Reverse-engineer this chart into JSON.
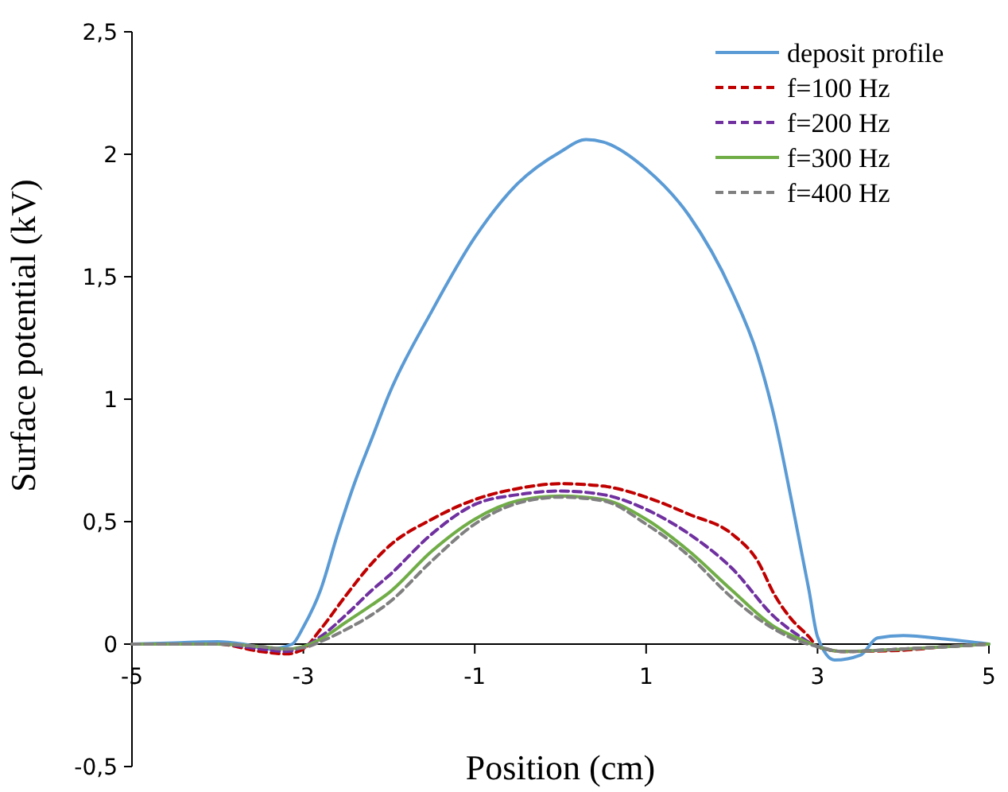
{
  "chart_data": {
    "type": "line",
    "xlabel": "Position (cm)",
    "ylabel": "Surface potential (kV)",
    "xlim": [
      -5,
      5
    ],
    "xticks": [
      -5,
      -3,
      -1,
      1,
      3,
      5
    ],
    "ylim": [
      -0.5,
      2.5
    ],
    "yticks": [
      {
        "value": -0.5,
        "label": "-0,5"
      },
      0,
      {
        "value": 0.5,
        "label": "0,5"
      },
      1,
      {
        "value": 1.5,
        "label": "1,5"
      },
      2,
      {
        "value": 2.5,
        "label": "2,5"
      }
    ],
    "grid": false,
    "legend": "top right",
    "marker": "none",
    "series": [
      {
        "name": "deposit profile",
        "color": "#5b9bd5",
        "line_style": "solid",
        "x": [
          -5,
          -4.5,
          -4,
          -3.7,
          -3.4,
          -3.13,
          -3,
          -2.8,
          -2.6,
          -2.4,
          -2.2,
          -2,
          -1.5,
          -1,
          -0.5,
          0,
          0.3,
          0.5,
          1,
          1.5,
          2,
          2.3,
          2.5,
          2.7,
          2.9,
          3,
          3.2,
          3.5,
          3.7,
          4,
          4.5,
          5
        ],
        "values": [
          0,
          0.005,
          0.01,
          0,
          -0.02,
          0,
          0.07,
          0.22,
          0.45,
          0.66,
          0.84,
          1.02,
          1.36,
          1.66,
          1.88,
          2.01,
          2.06,
          2.05,
          1.94,
          1.75,
          1.44,
          1.18,
          0.92,
          0.58,
          0.22,
          0.03,
          -0.065,
          -0.045,
          0.025,
          0.035,
          0.02,
          0
        ]
      },
      {
        "name": "f=100 Hz",
        "color": "#c00000",
        "line_style": "dashed",
        "x": [
          -5,
          -4,
          -3.5,
          -3.2,
          -3,
          -2.8,
          -2.5,
          -2.2,
          -2,
          -1.5,
          -1,
          -0.5,
          0,
          0.5,
          1,
          1.5,
          2,
          2.3,
          2.5,
          2.7,
          2.9,
          3,
          3.3,
          4,
          4.5,
          5
        ],
        "values": [
          0,
          0,
          -0.03,
          -0.04,
          -0.02,
          0.06,
          0.2,
          0.33,
          0.4,
          0.51,
          0.59,
          0.635,
          0.655,
          0.645,
          0.6,
          0.53,
          0.45,
          0.34,
          0.2,
          0.1,
          0.03,
          -0.01,
          -0.03,
          -0.025,
          -0.01,
          0
        ]
      },
      {
        "name": "f=200 Hz",
        "color": "#7030a0",
        "line_style": "dashed",
        "x": [
          -5,
          -4,
          -3.5,
          -3.2,
          -3,
          -2.8,
          -2.5,
          -2.2,
          -2,
          -1.5,
          -1,
          -0.5,
          0,
          0.5,
          1,
          1.5,
          2,
          2.5,
          2.8,
          3,
          3.3,
          4,
          5
        ],
        "values": [
          0,
          0,
          -0.02,
          -0.03,
          -0.01,
          0.03,
          0.12,
          0.22,
          0.28,
          0.45,
          0.57,
          0.61,
          0.625,
          0.61,
          0.55,
          0.45,
          0.31,
          0.11,
          0.03,
          -0.01,
          -0.03,
          -0.02,
          0
        ]
      },
      {
        "name": "f=300 Hz",
        "color": "#70ad47",
        "line_style": "solid",
        "x": [
          -5,
          -4,
          -3.5,
          -3.2,
          -3,
          -2.8,
          -2.5,
          -2.2,
          -2,
          -1.5,
          -1,
          -0.5,
          0,
          0.5,
          1,
          1.5,
          2,
          2.5,
          2.8,
          3,
          3.3,
          4,
          5
        ],
        "values": [
          0,
          0,
          -0.01,
          -0.02,
          -0.01,
          0.02,
          0.09,
          0.16,
          0.21,
          0.38,
          0.51,
          0.585,
          0.605,
          0.59,
          0.51,
          0.38,
          0.22,
          0.07,
          0.02,
          -0.01,
          -0.03,
          -0.02,
          0
        ]
      },
      {
        "name": "f=400 Hz",
        "color": "#808080",
        "line_style": "dashed",
        "x": [
          -5,
          -4,
          -3.5,
          -3.2,
          -3,
          -2.8,
          -2.5,
          -2.2,
          -2,
          -1.5,
          -1,
          -0.5,
          0,
          0.5,
          1,
          1.5,
          2,
          2.5,
          2.8,
          3,
          3.3,
          4,
          5
        ],
        "values": [
          0,
          0,
          -0.01,
          -0.02,
          -0.015,
          0.01,
          0.06,
          0.12,
          0.17,
          0.34,
          0.49,
          0.575,
          0.6,
          0.585,
          0.49,
          0.36,
          0.19,
          0.06,
          0.01,
          -0.01,
          -0.03,
          -0.02,
          0
        ]
      }
    ]
  }
}
